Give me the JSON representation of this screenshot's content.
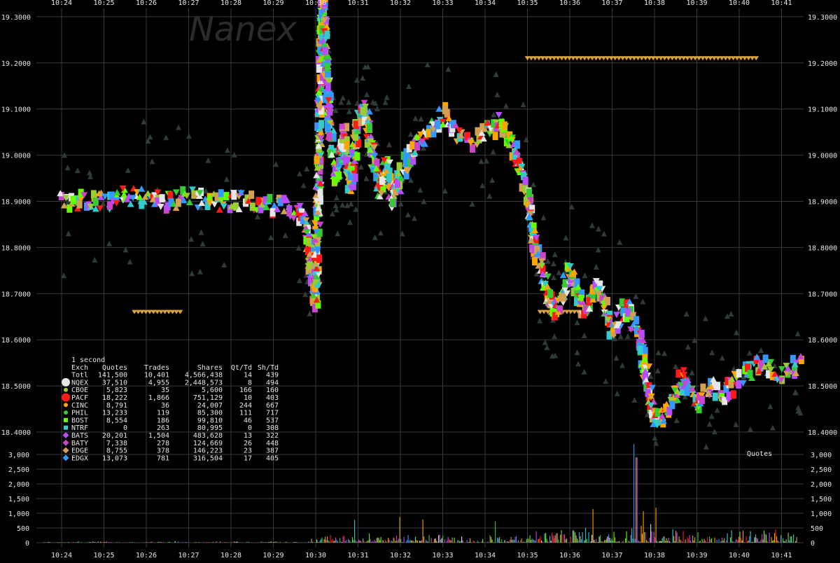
{
  "watermark": "Nanex",
  "chart_data": [
    {
      "type": "scatter",
      "name": "price",
      "x_ticks": [
        "10:24",
        "10:25",
        "10:26",
        "10:27",
        "10:28",
        "10:29",
        "10:30",
        "10:31",
        "10:32",
        "10:33",
        "10:34",
        "10:35",
        "10:36",
        "10:37",
        "10:38",
        "10:39",
        "10:40",
        "10:41"
      ],
      "y_ticks": [
        "18.4000",
        "18.5000",
        "18.6000",
        "18.7000",
        "18.8000",
        "18.9000",
        "19.0000",
        "19.1000",
        "19.2000",
        "19.3000"
      ],
      "ylim": [
        18.37,
        19.37
      ],
      "grid": true,
      "trade_path": [
        [
          "10:24:00",
          18.9
        ],
        [
          "10:24:30",
          18.9
        ],
        [
          "10:25:00",
          18.9
        ],
        [
          "10:25:30",
          18.91
        ],
        [
          "10:26:00",
          18.91
        ],
        [
          "10:26:30",
          18.9
        ],
        [
          "10:27:00",
          18.91
        ],
        [
          "10:27:30",
          18.9
        ],
        [
          "10:28:00",
          18.9
        ],
        [
          "10:28:30",
          18.9
        ],
        [
          "10:29:00",
          18.89
        ],
        [
          "10:29:30",
          18.88
        ],
        [
          "10:29:45",
          18.86
        ],
        [
          "10:30:00",
          18.68
        ],
        [
          "10:30:10",
          19.35
        ],
        [
          "10:30:20",
          19.05
        ],
        [
          "10:30:30",
          18.95
        ],
        [
          "10:30:40",
          19.05
        ],
        [
          "10:30:50",
          18.93
        ],
        [
          "10:31:00",
          19.08
        ],
        [
          "10:31:10",
          19.1
        ],
        [
          "10:31:20",
          19.0
        ],
        [
          "10:31:30",
          18.92
        ],
        [
          "10:31:40",
          18.98
        ],
        [
          "10:31:50",
          18.9
        ],
        [
          "10:32:00",
          18.95
        ],
        [
          "10:32:20",
          19.02
        ],
        [
          "10:32:40",
          19.05
        ],
        [
          "10:33:00",
          19.09
        ],
        [
          "10:33:20",
          19.05
        ],
        [
          "10:33:40",
          19.03
        ],
        [
          "10:34:00",
          19.05
        ],
        [
          "10:34:20",
          19.07
        ],
        [
          "10:34:40",
          19.02
        ],
        [
          "10:35:00",
          18.92
        ],
        [
          "10:35:10",
          18.8
        ],
        [
          "10:35:20",
          18.76
        ],
        [
          "10:35:30",
          18.7
        ],
        [
          "10:35:40",
          18.65
        ],
        [
          "10:36:00",
          18.75
        ],
        [
          "10:36:20",
          18.66
        ],
        [
          "10:36:40",
          18.72
        ],
        [
          "10:37:00",
          18.62
        ],
        [
          "10:37:20",
          18.67
        ],
        [
          "10:37:40",
          18.6
        ],
        [
          "10:38:00",
          18.42
        ],
        [
          "10:38:20",
          18.45
        ],
        [
          "10:38:40",
          18.52
        ],
        [
          "10:39:00",
          18.46
        ],
        [
          "10:39:20",
          18.5
        ],
        [
          "10:39:40",
          18.48
        ],
        [
          "10:40:00",
          18.52
        ],
        [
          "10:40:30",
          18.55
        ],
        [
          "10:41:00",
          18.53
        ],
        [
          "10:41:30",
          18.55
        ]
      ]
    },
    {
      "type": "bar",
      "name": "quotes",
      "ylabel": "Quotes",
      "y_ticks": [
        "0",
        "500",
        "1,000",
        "1,500",
        "2,000",
        "2,500",
        "3,000"
      ],
      "ylim": [
        0,
        3000
      ]
    }
  ],
  "legend": {
    "interval": "1 second",
    "headers": [
      "Exch",
      "Quotes",
      "Trades",
      "Shares",
      "Qt/Td",
      "Sh/Td"
    ],
    "rows": [
      {
        "exch": "Totl",
        "quotes": "141,500",
        "trades": "10,401",
        "shares": "4,566,438",
        "qt_td": "14",
        "sh_td": "439",
        "color": "",
        "marker": "none"
      },
      {
        "exch": "NQEX",
        "quotes": "37,510",
        "trades": "4,955",
        "shares": "2,448,573",
        "qt_td": "8",
        "sh_td": "494",
        "color": "#e6e6e6",
        "marker": "big-circle"
      },
      {
        "exch": "CBOE",
        "quotes": "5,823",
        "trades": "35",
        "shares": "5,600",
        "qt_td": "166",
        "sh_td": "160",
        "color": "#9acd32",
        "marker": "circle"
      },
      {
        "exch": "PACF",
        "quotes": "18,222",
        "trades": "1,866",
        "shares": "751,129",
        "qt_td": "10",
        "sh_td": "403",
        "color": "#ff1a1a",
        "marker": "big-circle"
      },
      {
        "exch": "CINC",
        "quotes": "8,791",
        "trades": "36",
        "shares": "24,007",
        "qt_td": "244",
        "sh_td": "667",
        "color": "#ffa500",
        "marker": "circle"
      },
      {
        "exch": "PHIL",
        "quotes": "13,233",
        "trades": "119",
        "shares": "85,300",
        "qt_td": "111",
        "sh_td": "717",
        "color": "#33cc33",
        "marker": "circle"
      },
      {
        "exch": "BOST",
        "quotes": "8,554",
        "trades": "186",
        "shares": "99,810",
        "qt_td": "46",
        "sh_td": "537",
        "color": "#66ff00",
        "marker": "square"
      },
      {
        "exch": "NTRF",
        "quotes": "0",
        "trades": "263",
        "shares": "80,995",
        "qt_td": "0",
        "sh_td": "308",
        "color": "#33cccc",
        "marker": "square"
      },
      {
        "exch": "BATS",
        "quotes": "20,201",
        "trades": "1,504",
        "shares": "483,628",
        "qt_td": "13",
        "sh_td": "322",
        "color": "#b84dff",
        "marker": "diamond"
      },
      {
        "exch": "BATY",
        "quotes": "7,338",
        "trades": "278",
        "shares": "124,669",
        "qt_td": "26",
        "sh_td": "448",
        "color": "#cc44cc",
        "marker": "diamond"
      },
      {
        "exch": "EDGE",
        "quotes": "8,755",
        "trades": "378",
        "shares": "146,223",
        "qt_td": "23",
        "sh_td": "387",
        "color": "#d2a050",
        "marker": "diamond"
      },
      {
        "exch": "EDGX",
        "quotes": "13,073",
        "trades": "781",
        "shares": "316,504",
        "qt_td": "17",
        "sh_td": "405",
        "color": "#3399ff",
        "marker": "diamond"
      }
    ]
  }
}
